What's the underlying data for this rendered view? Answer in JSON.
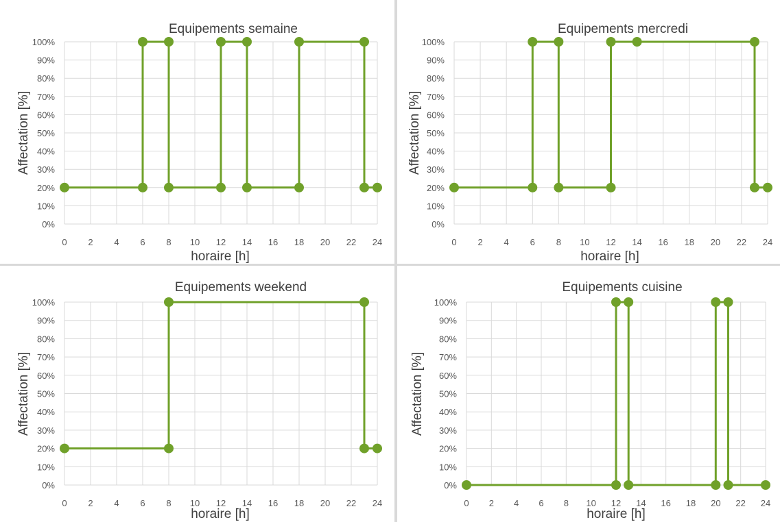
{
  "chart_data": [
    {
      "type": "line",
      "title": "Equipements semaine",
      "xlabel": "horaire [h]",
      "ylabel": "Affectation [%]",
      "xlim": [
        0,
        24
      ],
      "ylim": [
        0,
        100
      ],
      "xticks": [
        "0",
        "2",
        "4",
        "6",
        "8",
        "10",
        "12",
        "14",
        "16",
        "18",
        "20",
        "22",
        "24"
      ],
      "yticks": [
        "0%",
        "10%",
        "20%",
        "30%",
        "40%",
        "50%",
        "60%",
        "70%",
        "80%",
        "90%",
        "100%"
      ],
      "grid": true,
      "color": "#70a12a",
      "points": [
        [
          0,
          20
        ],
        [
          6,
          20
        ],
        [
          6,
          100
        ],
        [
          8,
          100
        ],
        [
          8,
          20
        ],
        [
          12,
          20
        ],
        [
          12,
          100
        ],
        [
          14,
          100
        ],
        [
          14,
          20
        ],
        [
          18,
          20
        ],
        [
          18,
          100
        ],
        [
          23,
          100
        ],
        [
          23,
          20
        ],
        [
          24,
          20
        ]
      ]
    },
    {
      "type": "line",
      "title": "Equipements mercredi",
      "xlabel": "horaire [h]",
      "ylabel": "Affectation [%]",
      "xlim": [
        0,
        24
      ],
      "ylim": [
        0,
        100
      ],
      "xticks": [
        "0",
        "2",
        "4",
        "6",
        "8",
        "10",
        "12",
        "14",
        "16",
        "18",
        "20",
        "22",
        "24"
      ],
      "yticks": [
        "0%",
        "10%",
        "20%",
        "30%",
        "40%",
        "50%",
        "60%",
        "70%",
        "80%",
        "90%",
        "100%"
      ],
      "grid": true,
      "color": "#70a12a",
      "points": [
        [
          0,
          20
        ],
        [
          6,
          20
        ],
        [
          6,
          100
        ],
        [
          8,
          100
        ],
        [
          8,
          20
        ],
        [
          12,
          20
        ],
        [
          12,
          100
        ],
        [
          14,
          100
        ],
        [
          23,
          100
        ],
        [
          23,
          20
        ],
        [
          24,
          20
        ]
      ]
    },
    {
      "type": "line",
      "title": "Equipements weekend",
      "xlabel": "horaire [h]",
      "ylabel": "Affectation [%]",
      "xlim": [
        0,
        24
      ],
      "ylim": [
        0,
        100
      ],
      "xticks": [
        "0",
        "2",
        "4",
        "6",
        "8",
        "10",
        "12",
        "14",
        "16",
        "18",
        "20",
        "22",
        "24"
      ],
      "yticks": [
        "0%",
        "10%",
        "20%",
        "30%",
        "40%",
        "50%",
        "60%",
        "70%",
        "80%",
        "90%",
        "100%"
      ],
      "grid": true,
      "color": "#70a12a",
      "points": [
        [
          0,
          20
        ],
        [
          8,
          20
        ],
        [
          8,
          100
        ],
        [
          23,
          100
        ],
        [
          23,
          20
        ],
        [
          24,
          20
        ]
      ]
    },
    {
      "type": "line",
      "title": "Equipements cuisine",
      "xlabel": "horaire [h]",
      "ylabel": "Affectation [%]",
      "xlim": [
        0,
        24
      ],
      "ylim": [
        0,
        100
      ],
      "xticks": [
        "0",
        "2",
        "4",
        "6",
        "8",
        "10",
        "12",
        "14",
        "16",
        "18",
        "20",
        "22",
        "24"
      ],
      "yticks": [
        "0%",
        "10%",
        "20%",
        "30%",
        "40%",
        "50%",
        "60%",
        "70%",
        "80%",
        "90%",
        "100%"
      ],
      "grid": true,
      "color": "#70a12a",
      "points": [
        [
          0,
          0
        ],
        [
          12,
          0
        ],
        [
          12,
          100
        ],
        [
          13,
          100
        ],
        [
          13,
          0
        ],
        [
          20,
          0
        ],
        [
          20,
          100
        ],
        [
          21,
          100
        ],
        [
          21,
          0
        ],
        [
          24,
          0
        ]
      ]
    }
  ]
}
